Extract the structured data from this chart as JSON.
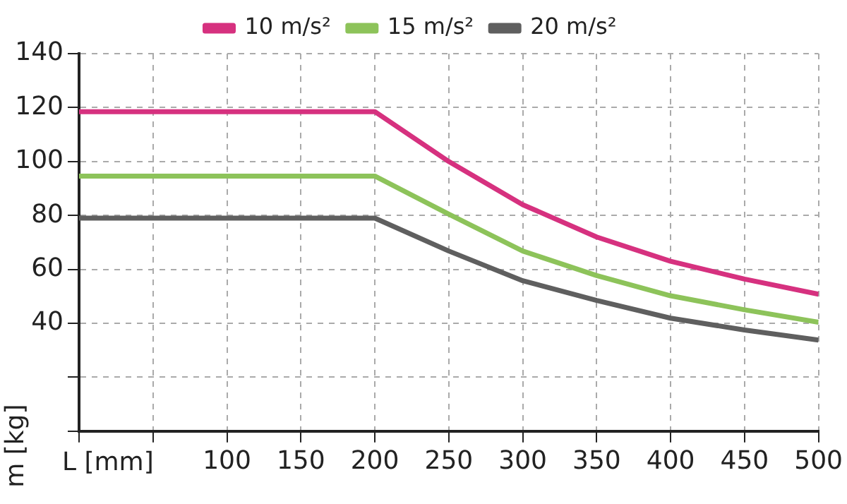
{
  "chart_data": {
    "type": "line",
    "xlabel": "L [mm]",
    "ylabel": "m [kg]",
    "x": [
      0,
      200,
      250,
      300,
      350,
      400,
      450,
      500
    ],
    "series": [
      {
        "name": "10 m/s²",
        "color": "#d6317f",
        "values": [
          118.5,
          118.5,
          100,
          84,
          72,
          63,
          56.4,
          50.8
        ]
      },
      {
        "name": "15 m/s²",
        "color": "#8dc35a",
        "values": [
          94.6,
          94.6,
          80.5,
          66.8,
          57.7,
          50.2,
          45,
          40.4
        ]
      },
      {
        "name": "20 m/s²",
        "color": "#5f5f5f",
        "values": [
          79,
          79,
          66.8,
          55.8,
          48.5,
          41.9,
          37.5,
          33.8
        ]
      }
    ],
    "xlim": [
      0,
      500
    ],
    "ylim": [
      0,
      140
    ],
    "xticks": [
      {
        "value": 0,
        "label": null
      },
      {
        "value": 50,
        "label": null
      },
      100,
      150,
      200,
      250,
      300,
      350,
      400,
      450,
      500
    ],
    "yticks": [
      {
        "value": 0,
        "label": null
      },
      {
        "value": 20,
        "label": null
      },
      40,
      60,
      80,
      100,
      120,
      140
    ],
    "grid": true,
    "legend": "top",
    "marker": "none",
    "line_style": "solid"
  }
}
